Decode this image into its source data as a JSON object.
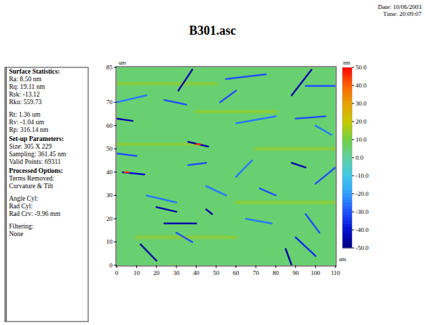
{
  "header": {
    "date": "Date: 10/06/2003",
    "time": "Time: 20:09:07"
  },
  "panel": {
    "sections": [
      {
        "heading": "Surface Statistics:",
        "groups": [
          [
            "Ra: 8.50 nm",
            "Rq: 19.11 nm",
            "Rsk: -13.12",
            "Rku: 559.73"
          ],
          [
            "Rt: 1.36 um",
            "Rv: -1.04 um",
            "Rp: 316.14 nm"
          ]
        ]
      },
      {
        "heading": "Set-up Parameters:",
        "groups": [
          [
            "Size: 305 X 229",
            "Sampling: 361.45 nm",
            "Valid Points: 69311"
          ]
        ]
      },
      {
        "heading": "Processed Options:",
        "groups": [
          [
            "Terms Removed:",
            "Curvature & Tilt"
          ],
          [
            "Angle Cyl:",
            "Rad Cyl:",
            "Rad Crv: -9.96 mm"
          ],
          [
            "Filtering:",
            "None"
          ]
        ]
      }
    ]
  },
  "chart_data": {
    "type": "heatmap",
    "title": "B301.asc",
    "x_label": "um",
    "y_label": "um",
    "xlim": [
      0,
      110
    ],
    "xticks": [
      0,
      10,
      20,
      30,
      40,
      50,
      60,
      70,
      80,
      90,
      100,
      110
    ],
    "ylim": [
      0,
      85
    ],
    "yticks": [
      0,
      10,
      20,
      30,
      40,
      50,
      60,
      70,
      85
    ],
    "colorbar": {
      "label": "nm",
      "range": [
        -50,
        50
      ],
      "ticks": [
        {
          "value": 50,
          "label": "50.0"
        },
        {
          "value": 40,
          "label": "40.0"
        },
        {
          "value": 30,
          "label": "30.0"
        },
        {
          "value": 20,
          "label": "20.0"
        },
        {
          "value": 10,
          "label": "10.0"
        },
        {
          "value": 0,
          "label": "0.0"
        },
        {
          "value": -10,
          "label": "-10.0"
        },
        {
          "value": -20,
          "label": "-20.0"
        },
        {
          "value": -30,
          "label": "-30.0"
        },
        {
          "value": -40,
          "label": "-40.0"
        },
        {
          "value": -50,
          "label": "-50.0"
        }
      ]
    },
    "background_value": 5,
    "features": [
      {
        "x": [
          0,
          50
        ],
        "y": [
          78,
          78
        ],
        "value": 15
      },
      {
        "x": [
          40,
          80
        ],
        "y": [
          66,
          66
        ],
        "value": 15
      },
      {
        "x": [
          0,
          40
        ],
        "y": [
          52,
          52
        ],
        "value": 15
      },
      {
        "x": [
          70,
          110
        ],
        "y": [
          50,
          50
        ],
        "value": 15
      },
      {
        "x": [
          60,
          110
        ],
        "y": [
          27,
          27
        ],
        "value": 15
      },
      {
        "x": [
          10,
          60
        ],
        "y": [
          12,
          12
        ],
        "value": 15
      },
      {
        "x": [
          31,
          38
        ],
        "y": [
          75,
          84
        ],
        "value": -45
      },
      {
        "x": [
          24,
          35
        ],
        "y": [
          71,
          69
        ],
        "value": -30
      },
      {
        "x": [
          36,
          46
        ],
        "y": [
          53,
          51
        ],
        "value": -45
      },
      {
        "x": [
          40,
          42
        ],
        "y": [
          52,
          52
        ],
        "value": 45
      },
      {
        "x": [
          0,
          8
        ],
        "y": [
          63,
          62
        ],
        "value": -45
      },
      {
        "x": [
          0,
          10
        ],
        "y": [
          48,
          47
        ],
        "value": -30
      },
      {
        "x": [
          3,
          14
        ],
        "y": [
          40,
          39
        ],
        "value": -40
      },
      {
        "x": [
          4,
          6
        ],
        "y": [
          40,
          40
        ],
        "value": 45
      },
      {
        "x": [
          20,
          30
        ],
        "y": [
          25,
          23
        ],
        "value": -45
      },
      {
        "x": [
          24,
          40
        ],
        "y": [
          18,
          18
        ],
        "value": -45
      },
      {
        "x": [
          12,
          20
        ],
        "y": [
          9,
          2
        ],
        "value": -45
      },
      {
        "x": [
          30,
          38
        ],
        "y": [
          14,
          10
        ],
        "value": -30
      },
      {
        "x": [
          52,
          60
        ],
        "y": [
          70,
          75
        ],
        "value": -30
      },
      {
        "x": [
          55,
          75
        ],
        "y": [
          80,
          82
        ],
        "value": -30
      },
      {
        "x": [
          60,
          80
        ],
        "y": [
          61,
          64
        ],
        "value": -25
      },
      {
        "x": [
          88,
          95
        ],
        "y": [
          44,
          42
        ],
        "value": -45
      },
      {
        "x": [
          88,
          98
        ],
        "y": [
          73,
          84
        ],
        "value": -45
      },
      {
        "x": [
          95,
          110
        ],
        "y": [
          77,
          77
        ],
        "value": -30
      },
      {
        "x": [
          90,
          105
        ],
        "y": [
          63,
          64
        ],
        "value": -30
      },
      {
        "x": [
          100,
          108
        ],
        "y": [
          60,
          56
        ],
        "value": -25
      },
      {
        "x": [
          85,
          88
        ],
        "y": [
          7,
          0
        ],
        "value": -45
      },
      {
        "x": [
          90,
          100
        ],
        "y": [
          12,
          4
        ],
        "value": -35
      },
      {
        "x": [
          95,
          102
        ],
        "y": [
          22,
          14
        ],
        "value": -30
      },
      {
        "x": [
          72,
          80
        ],
        "y": [
          33,
          30
        ],
        "value": -30
      },
      {
        "x": [
          60,
          68
        ],
        "y": [
          38,
          45
        ],
        "value": -25
      },
      {
        "x": [
          45,
          55
        ],
        "y": [
          34,
          30
        ],
        "value": -25
      },
      {
        "x": [
          36,
          45
        ],
        "y": [
          43,
          44
        ],
        "value": -30
      },
      {
        "x": [
          15,
          30
        ],
        "y": [
          30,
          27
        ],
        "value": -25
      },
      {
        "x": [
          65,
          78
        ],
        "y": [
          20,
          18
        ],
        "value": -25
      },
      {
        "x": [
          100,
          110
        ],
        "y": [
          35,
          42
        ],
        "value": -30
      },
      {
        "x": [
          0,
          15
        ],
        "y": [
          70,
          73
        ],
        "value": -25
      },
      {
        "x": [
          45,
          48
        ],
        "y": [
          24,
          22
        ],
        "value": -45
      }
    ]
  }
}
